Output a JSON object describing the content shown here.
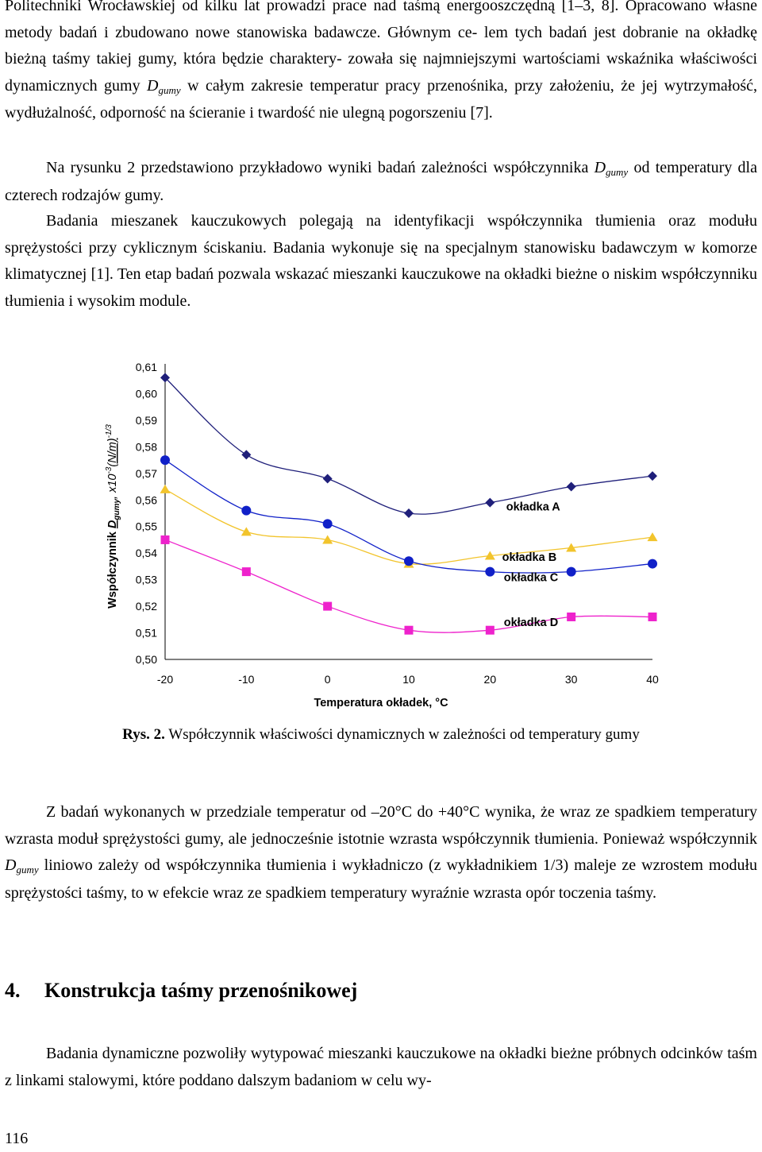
{
  "top_paragraph": {
    "line1": "Politechniki Wrocławskiej od kilku lat prowadzi prace nad taśmą energooszczędną [1–3, 8].",
    "line2": "Opracowano własne metody badań i zbudowano nowe stanowiska badawcze. Głównym ce-",
    "line3": "lem tych badań jest dobranie na okładkę bieżną taśmy takiej gumy, która będzie charaktery-",
    "line4_pre": "zowała się najmniejszymi wartościami wskaźnika właściwości dynamicznych gumy ",
    "line5_7": "w całym zakresie temperatur pracy przenośnika, przy założeniu, że jej wytrzymałość, wydłużalność, odporność na ścieranie i twardość nie ulegną pogorszeniu [7]."
  },
  "symbol": {
    "D": "D",
    "sub": "gumy"
  },
  "paragraph2": {
    "pre": "Na rysunku 2 przedstawiono przykładowo wyniki badań zależności współczynnika ",
    "post": " od temperatury dla czterech rodzajów gumy."
  },
  "paragraph3": "Badania mieszanek kauczukowych polegają na identyfikacji współczynnika tłumienia oraz modułu sprężystości przy cyklicznym ściskaniu. Badania wykonuje się na specjalnym stanowisku badawczym w komorze klimatycznej [1]. Ten etap badań pozwala wskazać mieszanki kauczukowe na okładki bieżne o niskim współczynniku tłumienia i wysokim module.",
  "chart_data": {
    "type": "line",
    "x": [
      -20,
      -10,
      0,
      10,
      20,
      30,
      40
    ],
    "xlim": [
      -20,
      40
    ],
    "ylim": [
      0.5,
      0.61
    ],
    "xticks": [
      "-20",
      "-10",
      "0",
      "10",
      "20",
      "30",
      "40"
    ],
    "yticks": [
      {
        "v": 0.61,
        "label": "0,61"
      },
      {
        "v": 0.6,
        "label": "0,60"
      },
      {
        "v": 0.59,
        "label": "0,59"
      },
      {
        "v": 0.58,
        "label": "0,58"
      },
      {
        "v": 0.57,
        "label": "0,57"
      },
      {
        "v": 0.56,
        "label": "0,56"
      },
      {
        "v": 0.55,
        "label": "0,55"
      },
      {
        "v": 0.54,
        "label": "0,54"
      },
      {
        "v": 0.53,
        "label": "0,53"
      },
      {
        "v": 0.52,
        "label": "0,52"
      },
      {
        "v": 0.51,
        "label": "0,51"
      },
      {
        "v": 0.5,
        "label": "0,50"
      }
    ],
    "xlabel": "Temperatura okładek, °C",
    "ylabel_pre": "Współczynnik ",
    "ylabel_sym": "D",
    "ylabel_sub": "gumy",
    "ylabel_post": ", x10",
    "ylabel_exp1": "-3",
    "ylabel_unit": "(N/m)",
    "ylabel_exp2": "-1/3",
    "grid": false,
    "series": [
      {
        "name": "okładka A",
        "color": "#1f1f7a",
        "marker": "diamond",
        "values": [
          0.606,
          0.577,
          0.568,
          0.555,
          0.559,
          0.565,
          0.569
        ]
      },
      {
        "name": "okładka B",
        "color": "#f2c42c",
        "marker": "triangle",
        "values": [
          0.564,
          0.548,
          0.545,
          0.536,
          0.539,
          0.542,
          0.546
        ]
      },
      {
        "name": "okładka C",
        "color": "#1020c8",
        "marker": "circle",
        "values": [
          0.575,
          0.556,
          0.551,
          0.537,
          0.533,
          0.533,
          0.536
        ]
      },
      {
        "name": "okładka D",
        "color": "#ee22cc",
        "marker": "square",
        "values": [
          0.545,
          0.533,
          0.52,
          0.511,
          0.511,
          0.516,
          0.516
        ]
      }
    ],
    "legend_labels": [
      {
        "text": "okładka A",
        "at": [
          22,
          0.556
        ]
      },
      {
        "text": "okładka B",
        "at": [
          21.5,
          0.537
        ]
      },
      {
        "text": "okładka C",
        "at": [
          21.7,
          0.5295
        ]
      },
      {
        "text": "okładka D",
        "at": [
          21.7,
          0.5125
        ]
      }
    ]
  },
  "caption": {
    "label": "Rys. 2.",
    "text": " Współczynnik właściwości dynamicznych w zależności od temperatury gumy"
  },
  "paragraph4": {
    "pre": "Z badań wykonanych w przedziale temperatur od ",
    "minus": "–",
    "mid": "20°C do +40°C wynika, że wraz ze spadkiem temperatury wzrasta moduł sprężystości gumy, ale jednocześnie istotnie wzrasta współczynnik tłumienia. Ponieważ współczynnik ",
    "post": " liniowo zależy od współczynnika tłumienia i wykładniczo (z wykładnikiem 1/3) maleje ze wzrostem modułu sprężystości taśmy, to w efekcie wraz ze spadkiem temperatury wyraźnie wzrasta opór toczenia taśmy."
  },
  "section": {
    "number": "4.",
    "title": "Konstrukcja taśmy przenośnikowej"
  },
  "paragraph5": "Badania dynamiczne pozwoliły wytypować mieszanki kauczukowe na okładki bieżne próbnych odcinków taśm z linkami stalowymi, które poddano dalszym badaniom w celu wy-",
  "page_number": "116"
}
